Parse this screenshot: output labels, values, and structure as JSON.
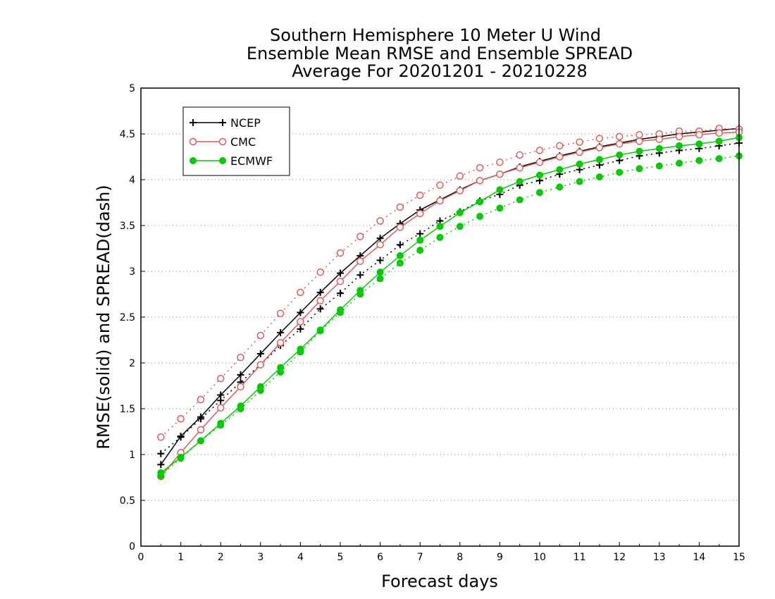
{
  "chart_data": {
    "type": "line",
    "title_lines": [
      "Southern Hemisphere 10 Meter U Wind",
      "Ensemble Mean RMSE and Ensemble SPREAD",
      "Average For 20201201 - 20210228"
    ],
    "xlabel": "Forecast days",
    "ylabel": "RMSE(solid) and SPREAD(dash)",
    "xlim": [
      0,
      15
    ],
    "ylim": [
      0,
      5
    ],
    "x_ticks": [
      "0",
      "1",
      "2",
      "3",
      "4",
      "5",
      "6",
      "7",
      "8",
      "9",
      "10",
      "11",
      "12",
      "13",
      "14",
      "15"
    ],
    "y_ticks": [
      "0",
      "0.5",
      "1",
      "1.5",
      "2",
      "2.5",
      "3",
      "3.5",
      "4",
      "4.5",
      "5"
    ],
    "grid": "horizontal dotted",
    "legend_position": "top-left",
    "x": [
      0.5,
      1,
      1.5,
      2,
      2.5,
      3,
      3.5,
      4,
      4.5,
      5,
      5.5,
      6,
      6.5,
      7,
      7.5,
      8,
      8.5,
      9,
      9.5,
      10,
      10.5,
      11,
      11.5,
      12,
      12.5,
      13,
      13.5,
      14,
      14.5,
      15
    ],
    "series": [
      {
        "name": "NCEP",
        "color": "#000000",
        "marker": "plus",
        "rmse": [
          0.89,
          1.2,
          1.41,
          1.65,
          1.87,
          2.1,
          2.33,
          2.55,
          2.77,
          2.98,
          3.17,
          3.36,
          3.52,
          3.67,
          3.78,
          3.89,
          3.99,
          4.06,
          4.14,
          4.2,
          4.26,
          4.31,
          4.36,
          4.4,
          4.44,
          4.47,
          4.5,
          4.52,
          4.54,
          4.56
        ],
        "spread": [
          1.01,
          1.19,
          1.39,
          1.59,
          1.79,
          1.98,
          2.19,
          2.37,
          2.59,
          2.76,
          2.96,
          3.12,
          3.29,
          3.41,
          3.55,
          3.65,
          3.77,
          3.84,
          3.94,
          3.99,
          4.06,
          4.11,
          4.16,
          4.21,
          4.26,
          4.29,
          4.32,
          4.34,
          4.37,
          4.4
        ]
      },
      {
        "name": "CMC",
        "color": "#e05a5a",
        "marker": "open-circle",
        "rmse": [
          0.76,
          1.02,
          1.27,
          1.51,
          1.74,
          1.98,
          2.22,
          2.45,
          2.68,
          2.89,
          3.11,
          3.29,
          3.48,
          3.63,
          3.77,
          3.88,
          3.99,
          4.06,
          4.13,
          4.19,
          4.25,
          4.3,
          4.35,
          4.39,
          4.42,
          4.44,
          4.47,
          4.49,
          4.51,
          4.52
        ],
        "spread": [
          1.19,
          1.39,
          1.6,
          1.83,
          2.06,
          2.3,
          2.54,
          2.77,
          2.99,
          3.2,
          3.38,
          3.55,
          3.7,
          3.83,
          3.94,
          4.04,
          4.13,
          4.19,
          4.27,
          4.32,
          4.37,
          4.41,
          4.45,
          4.47,
          4.49,
          4.5,
          4.53,
          4.53,
          4.56,
          4.55
        ]
      },
      {
        "name": "ECMWF",
        "color": "#00cc00",
        "marker": "filled-circle",
        "rmse": [
          0.8,
          0.97,
          1.15,
          1.34,
          1.53,
          1.74,
          1.95,
          2.15,
          2.36,
          2.58,
          2.79,
          2.99,
          3.17,
          3.34,
          3.49,
          3.64,
          3.76,
          3.89,
          3.98,
          4.05,
          4.11,
          4.17,
          4.22,
          4.27,
          4.31,
          4.34,
          4.37,
          4.39,
          4.42,
          4.46
        ],
        "spread": [
          0.77,
          0.96,
          1.15,
          1.32,
          1.5,
          1.7,
          1.9,
          2.12,
          2.35,
          2.55,
          2.75,
          2.92,
          3.09,
          3.23,
          3.37,
          3.49,
          3.6,
          3.69,
          3.78,
          3.86,
          3.92,
          3.98,
          4.03,
          4.08,
          4.12,
          4.15,
          4.18,
          4.21,
          4.23,
          4.26
        ]
      }
    ]
  }
}
